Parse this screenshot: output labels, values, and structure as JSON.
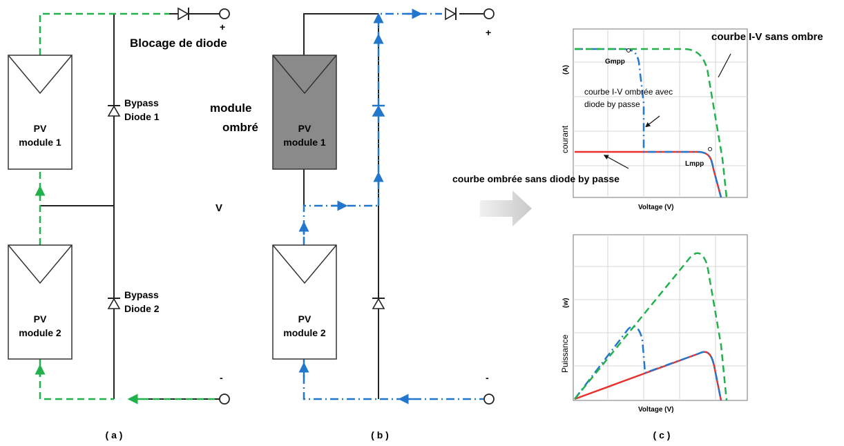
{
  "panel_a": {
    "module1": {
      "line1": "PV",
      "line2": "module 1"
    },
    "module2": {
      "line1": "PV",
      "line2": "module 2"
    },
    "bypass1": {
      "line1": "Bypass",
      "line2": "Diode 1"
    },
    "bypass2": {
      "line1": "Bypass",
      "line2": "Diode 2"
    },
    "blocking": "Blocage de diode",
    "plus": "+",
    "minus": "-",
    "caption": "( a )"
  },
  "middle": {
    "shaded_label": {
      "line1": "module",
      "line2": "ombré"
    },
    "v_label": "V"
  },
  "panel_b": {
    "module1": {
      "line1": "PV",
      "line2": "module 1"
    },
    "module2": {
      "line1": "PV",
      "line2": "module 2"
    },
    "plus": "+",
    "minus": "-",
    "caption": "( b )"
  },
  "panel_c": {
    "caption": "( c )",
    "iv": {
      "ylabel": "courant",
      "yunit": "(A)",
      "xlabel": "Voltage (V)",
      "gmpp": "Gmpp",
      "lmpp": "Lmpp",
      "ann_unshaded": "courbe I-V sans ombre",
      "ann_bypass": {
        "line1": "courbe I-V ombrée avec",
        "line2": "diode by passe"
      },
      "ann_nobypass": "courbe ombrée sans diode by passe"
    },
    "pv": {
      "ylabel": "Puissance",
      "yunit": "(w)",
      "xlabel": "Voltage (V)"
    },
    "colors": {
      "unshaded": "#22b04b",
      "bypass": "#2277cc",
      "nobypass": "#e8322e"
    }
  }
}
